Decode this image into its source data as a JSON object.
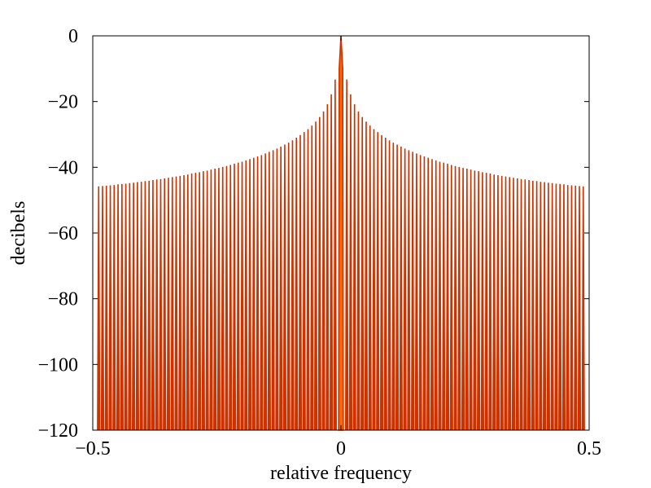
{
  "chart_data": {
    "type": "line",
    "title": "",
    "xlabel": "relative frequency",
    "ylabel": "decibels",
    "xlim": [
      -0.5,
      0.5
    ],
    "ylim": [
      -120,
      0
    ],
    "x_ticks": [
      -0.5,
      0,
      0.5
    ],
    "x_tick_labels": [
      "−0.5",
      "0",
      "0.5"
    ],
    "y_ticks": [
      0,
      -20,
      -40,
      -60,
      -80,
      -100,
      -120
    ],
    "y_tick_labels": [
      "0",
      "−20",
      "−40",
      "−60",
      "−80",
      "−100",
      "−120"
    ],
    "grid": false,
    "legend": "none",
    "series_color": "#cc3300",
    "main_lobe_color": "#ff6600",
    "sidelobe_peak_db": [
      -13.3,
      -17.8,
      -20.8,
      -23.0,
      -24.7,
      -26.1,
      -27.3,
      -28.4,
      -29.3,
      -30.2,
      -31.0,
      -31.8,
      -32.5,
      -33.1,
      -33.7,
      -34.3,
      -34.8,
      -35.3,
      -35.8,
      -36.3,
      -36.7,
      -37.1,
      -37.5,
      -37.9,
      -38.3,
      -38.6,
      -38.9,
      -39.3,
      -39.6,
      -39.9,
      -40.2,
      -40.4,
      -40.7,
      -41.0,
      -41.2,
      -41.5,
      -41.7,
      -41.9,
      -42.2,
      -42.4,
      -42.6,
      -42.8,
      -43.0,
      -43.2,
      -43.4,
      -43.6,
      -43.7,
      -43.9,
      -44.1,
      -44.2,
      -44.4,
      -44.5,
      -44.7,
      -44.8,
      -45.0,
      -45.1,
      -45.2,
      -45.4,
      -45.5,
      -45.6,
      -45.7,
      -45.8
    ],
    "null_spacing": 0.00781,
    "main_lobe_peak_db": 0
  }
}
